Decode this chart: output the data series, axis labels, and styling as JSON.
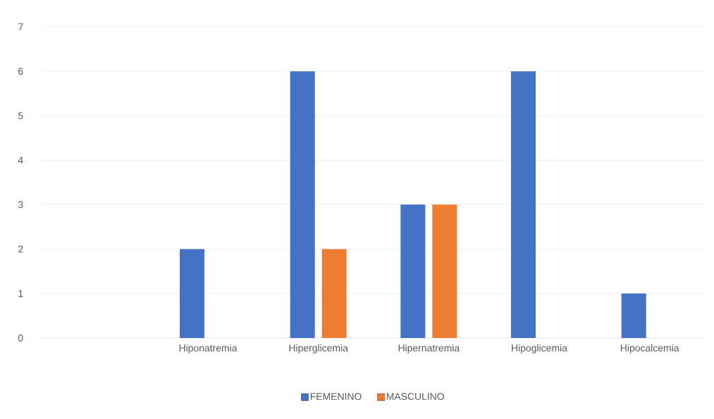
{
  "chart_data": {
    "type": "bar",
    "categories": [
      null,
      "Hiponatremia",
      "Hiperglicemia",
      "Hipernatremia",
      "Hipoglicemia",
      "Hipocalcemia"
    ],
    "series": [
      {
        "name": "FEMENINO",
        "color": "#4472c4",
        "values": [
          null,
          2,
          6,
          3,
          6,
          1
        ]
      },
      {
        "name": "MASCULINO",
        "color": "#ed7d31",
        "values": [
          null,
          null,
          2,
          3,
          null,
          null
        ]
      }
    ],
    "ylim": [
      0,
      7
    ],
    "yticks": [
      0,
      1,
      2,
      3,
      4,
      5,
      6,
      7
    ],
    "grid": "y",
    "legend": "bottom"
  }
}
